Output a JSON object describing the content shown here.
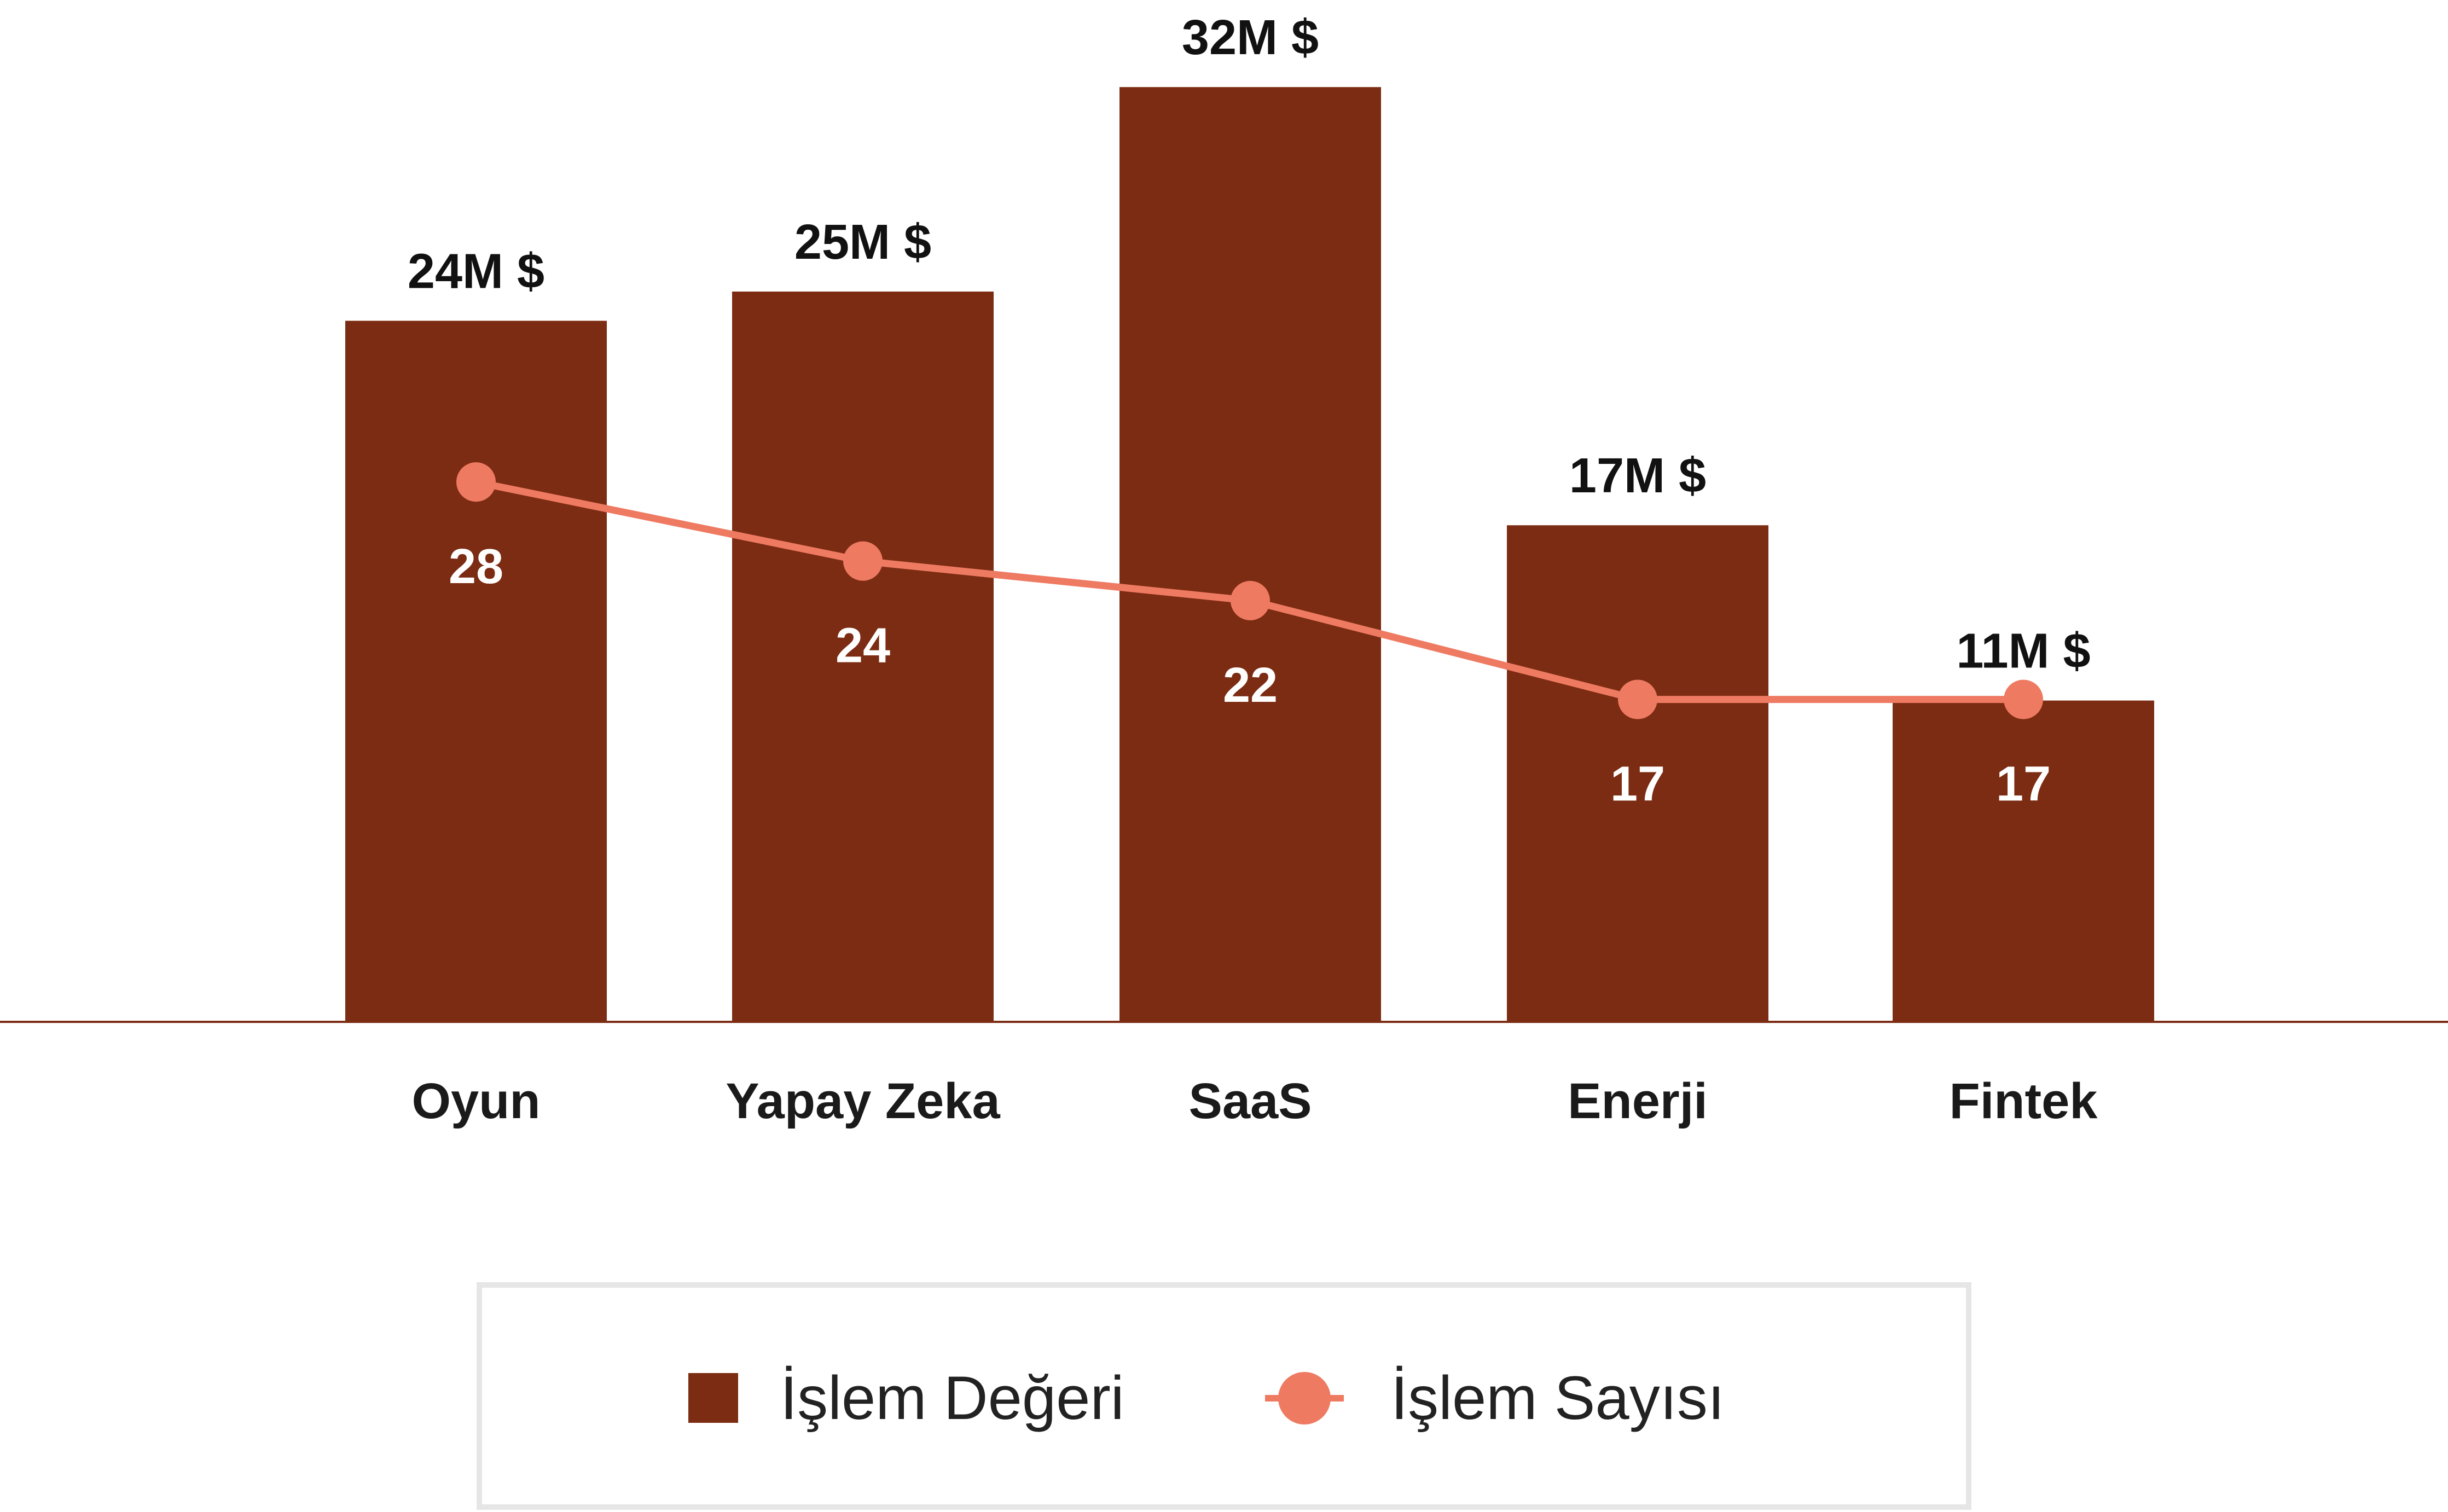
{
  "colors": {
    "bar": "#7b2c12",
    "line": "#ef7a62",
    "axis": "#7b2c12",
    "legend_border": "#e6e6e6"
  },
  "chart_data": {
    "type": "bar",
    "categories": [
      "Oyun",
      "Yapay Zeka",
      "SaaS",
      "Enerji",
      "Fintek"
    ],
    "series": [
      {
        "name": "İşlem Değeri",
        "kind": "bar",
        "values": [
          24,
          25,
          32,
          17,
          11
        ],
        "value_labels": [
          "24M $",
          "25M $",
          "32M $",
          "17M $",
          "11M $"
        ]
      },
      {
        "name": "İşlem Sayısı",
        "kind": "line",
        "values": [
          28,
          24,
          22,
          17,
          17
        ],
        "value_labels": [
          "28",
          "24",
          "22",
          "17",
          "17"
        ]
      }
    ],
    "grid": false,
    "legend_position": "bottom"
  }
}
